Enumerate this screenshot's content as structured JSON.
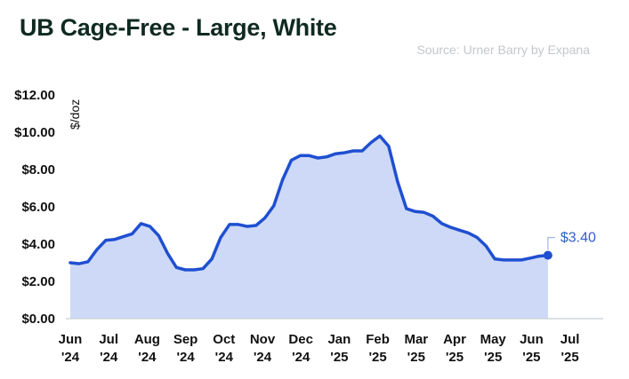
{
  "title": "UB Cage-Free  - Large, White",
  "source": "Source: Urner Barry by Expana",
  "colors": {
    "line": "#1f4fd1",
    "area": "#cdd9f7",
    "axis": "#cfd5dc",
    "end_label": "#2f5fc8"
  },
  "chart_data": {
    "type": "area",
    "title": "UB Cage-Free  - Large, White",
    "ylabel": "$/doz",
    "xlabel": "",
    "ylim": [
      0,
      12
    ],
    "yticks": [
      0,
      2,
      4,
      6,
      8,
      10,
      12
    ],
    "ytick_labels": [
      "$0.00",
      "$2.00",
      "$4.00",
      "$6.00",
      "$8.00",
      "$10.00",
      "$12.00"
    ],
    "grid": false,
    "xtick_labels": [
      {
        "month": "Jun",
        "year": "'24"
      },
      {
        "month": "Jul",
        "year": "'24"
      },
      {
        "month": "Aug",
        "year": "'24"
      },
      {
        "month": "Sep",
        "year": "'24"
      },
      {
        "month": "Oct",
        "year": "'24"
      },
      {
        "month": "Nov",
        "year": "'24"
      },
      {
        "month": "Dec",
        "year": "'24"
      },
      {
        "month": "Jan",
        "year": "'25"
      },
      {
        "month": "Feb",
        "year": "'25"
      },
      {
        "month": "Mar",
        "year": "'25"
      },
      {
        "month": "Apr",
        "year": "'25"
      },
      {
        "month": "May",
        "year": "'25"
      },
      {
        "month": "Jun",
        "year": "'25"
      },
      {
        "month": "Jul",
        "year": "'25"
      }
    ],
    "x": [
      "2024-06-01",
      "2024-06-08",
      "2024-06-15",
      "2024-06-22",
      "2024-06-29",
      "2024-07-06",
      "2024-07-13",
      "2024-07-20",
      "2024-07-27",
      "2024-08-03",
      "2024-08-10",
      "2024-08-17",
      "2024-08-24",
      "2024-08-31",
      "2024-09-07",
      "2024-09-14",
      "2024-09-21",
      "2024-09-28",
      "2024-10-05",
      "2024-10-12",
      "2024-10-19",
      "2024-10-26",
      "2024-11-02",
      "2024-11-09",
      "2024-11-16",
      "2024-11-23",
      "2024-11-30",
      "2024-12-07",
      "2024-12-14",
      "2024-12-21",
      "2024-12-28",
      "2025-01-04",
      "2025-01-11",
      "2025-01-18",
      "2025-01-25",
      "2025-02-01",
      "2025-02-08",
      "2025-02-15",
      "2025-02-22",
      "2025-03-01",
      "2025-03-08",
      "2025-03-15",
      "2025-03-22",
      "2025-03-29",
      "2025-04-05",
      "2025-04-12",
      "2025-04-19",
      "2025-04-26",
      "2025-05-03",
      "2025-05-10",
      "2025-05-17",
      "2025-05-24",
      "2025-05-31",
      "2025-06-07",
      "2025-06-14"
    ],
    "values": [
      3.0,
      2.95,
      3.05,
      3.7,
      4.2,
      4.25,
      4.4,
      4.55,
      5.1,
      4.95,
      4.45,
      3.5,
      2.75,
      2.62,
      2.62,
      2.68,
      3.2,
      4.35,
      5.05,
      5.05,
      4.95,
      5.0,
      5.4,
      6.05,
      7.45,
      8.5,
      8.75,
      8.75,
      8.62,
      8.68,
      8.85,
      8.9,
      9.0,
      9.0,
      9.45,
      9.8,
      9.25,
      7.35,
      5.9,
      5.75,
      5.7,
      5.5,
      5.1,
      4.9,
      4.75,
      4.6,
      4.35,
      3.9,
      3.2,
      3.15,
      3.15,
      3.15,
      3.25,
      3.35,
      3.4
    ],
    "end_label": "$3.40"
  }
}
